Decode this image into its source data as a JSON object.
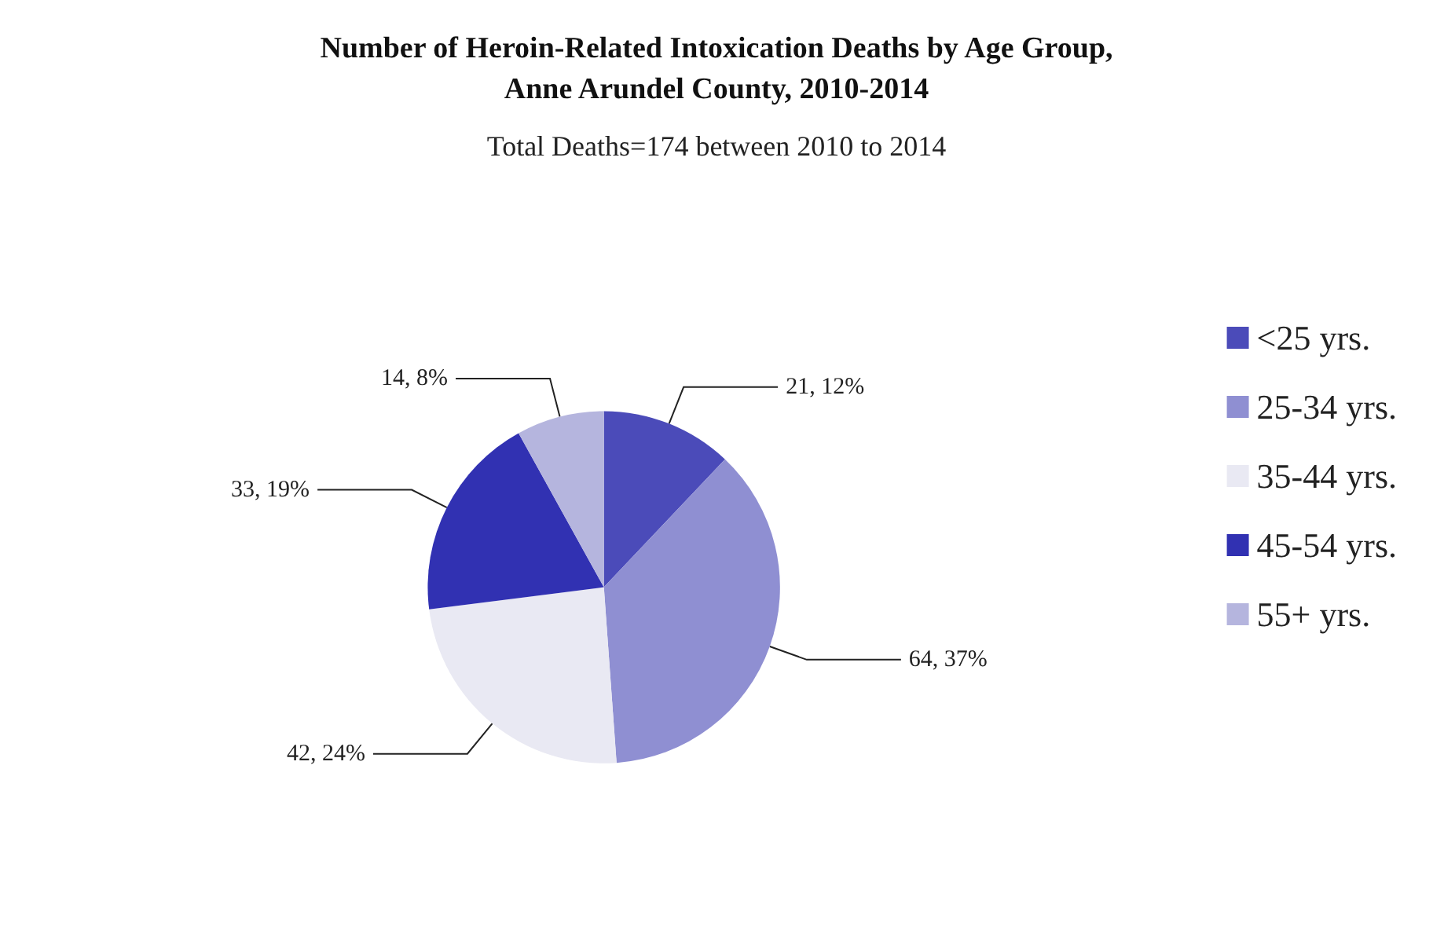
{
  "chart_data": {
    "type": "pie",
    "title": "Number of Heroin-Related Intoxication Deaths by Age Group,\nAnne Arundel County, 2010-2014",
    "subtitle": "Total Deaths=174 between 2010 to 2014",
    "categories": [
      "<25 yrs.",
      "25-34 yrs.",
      "35-44 yrs.",
      "45-54 yrs.",
      "55+ yrs."
    ],
    "values": [
      21,
      64,
      42,
      33,
      14
    ],
    "colors": [
      "#4b4bb9",
      "#8f8fd2",
      "#e9e9f3",
      "#3131b2",
      "#b5b5de"
    ],
    "value_labels": [
      "21, 12%",
      "64, 37%",
      "42, 24%",
      "33, 19%",
      "14, 8%"
    ],
    "legend": "right"
  }
}
